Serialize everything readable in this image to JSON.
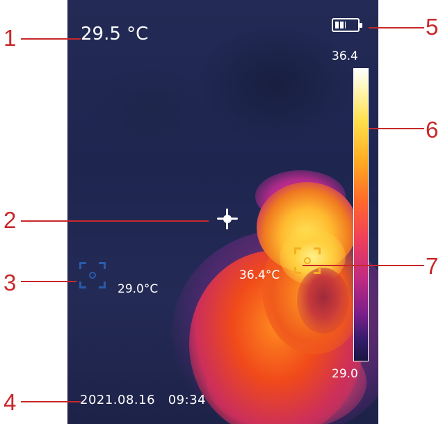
{
  "screen": {
    "center_temperature": "29.5 °C",
    "cold_spot_temperature": "29.0°C",
    "hot_spot_temperature": "36.4°C",
    "date": "2021.08.16",
    "time": "09:34",
    "scale_max": "36.4",
    "scale_min": "29.0",
    "battery_level": 0.5
  },
  "icons": {
    "battery": "battery-icon",
    "crosshair": "center-crosshair-icon",
    "cold_marker": "cold-spot-marker-icon",
    "hot_marker": "hot-spot-marker-icon"
  },
  "colors": {
    "callout": "#c8282a",
    "cold_marker": "#2c63b8",
    "hot_marker": "#f4b020",
    "background": "#222a55"
  },
  "callouts": [
    "1",
    "2",
    "3",
    "4",
    "5",
    "6",
    "7"
  ]
}
